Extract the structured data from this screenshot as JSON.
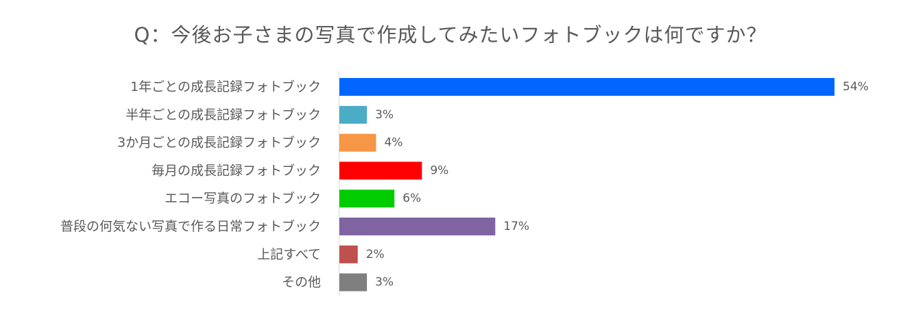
{
  "chart_data": {
    "type": "bar",
    "orientation": "horizontal",
    "title": "Q：今後お子さまの写真で作成してみたいフォトブックは何ですか？",
    "xlabel": "",
    "ylabel": "",
    "xlim": [
      0,
      54
    ],
    "grid": false,
    "legend": "none",
    "value_suffix": "%",
    "categories": [
      "1年ごとの成長記録フォトブック",
      "半年ごとの成長記録フォトブック",
      "3か月ごとの成長記録フォトブック",
      "毎月の成長記録フォトブック",
      "エコー写真のフォトブック",
      "普段の何気ない写真で作る日常フォトブック",
      "上記すべて",
      "その他"
    ],
    "values": [
      54,
      3,
      4,
      9,
      6,
      17,
      2,
      3
    ],
    "colors": [
      "#0066FF",
      "#4BACC6",
      "#F79646",
      "#FF0000",
      "#00CC00",
      "#8064A2",
      "#C0504D",
      "#7F7F7F"
    ]
  }
}
